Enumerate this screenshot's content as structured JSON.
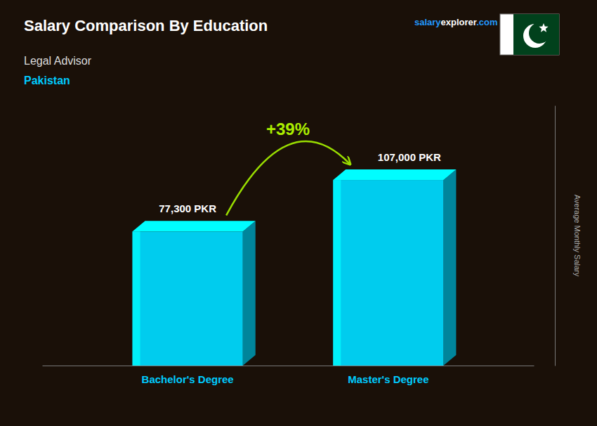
{
  "chart_data": {
    "type": "bar",
    "title": "Salary Comparison By Education",
    "subtitle": "Legal Advisor",
    "annotations": [
      {
        "text": "Pakistan",
        "color": "#00CCFF"
      },
      {
        "text": "salary",
        "color": "#2299FF"
      },
      {
        "text": "explorer",
        "color": "#FFFFFF"
      },
      {
        "text": ".com",
        "color": "#2299FF"
      },
      {
        "text": "+39%",
        "color": "#AAEE00"
      }
    ],
    "ylabel": "Average Monthly Salary",
    "categories": [
      "Bachelor's Degree",
      "Master's Degree"
    ],
    "values": [
      77300,
      107000
    ],
    "value_labels": [
      "77,300 PKR",
      "107,000 PKR"
    ],
    "data_labels": true,
    "color": "#00CCEE",
    "ylim": [
      0,
      150000
    ],
    "grid": false,
    "tick_labels": "x"
  }
}
